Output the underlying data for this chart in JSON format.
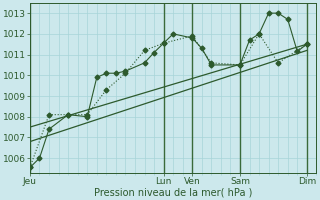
{
  "bg_color": "#cce8ec",
  "grid_color": "#a8d4d8",
  "line_color": "#2d5a2d",
  "text_color": "#2d5a2d",
  "xlabel": "Pression niveau de la mer( hPa )",
  "ylim": [
    1005.3,
    1013.5
  ],
  "yticks": [
    1006,
    1007,
    1008,
    1009,
    1010,
    1011,
    1012,
    1013
  ],
  "day_labels": [
    "Jeu",
    "Lun",
    "Ven",
    "Sam",
    "Dim"
  ],
  "day_positions": [
    0,
    14,
    17,
    22,
    29
  ],
  "xlim": [
    0,
    30
  ],
  "num_x_minor": 30,
  "series1_x": [
    0,
    1,
    2,
    4,
    6,
    7,
    8,
    9,
    10,
    12,
    13,
    14,
    15,
    17,
    18,
    19,
    22,
    23,
    24,
    25,
    26,
    27,
    28,
    29
  ],
  "series1_y": [
    1005.55,
    1006.0,
    1007.4,
    1008.1,
    1008.0,
    1009.9,
    1010.1,
    1010.1,
    1010.2,
    1010.6,
    1011.1,
    1011.55,
    1012.0,
    1011.8,
    1011.3,
    1010.5,
    1010.5,
    1011.7,
    1012.0,
    1013.0,
    1013.0,
    1012.7,
    1011.15,
    1011.5
  ],
  "series2_x": [
    0,
    2,
    4,
    6,
    8,
    10,
    12,
    14,
    17,
    19,
    22,
    24,
    26,
    29
  ],
  "series2_y": [
    1005.55,
    1008.1,
    1008.1,
    1008.1,
    1009.3,
    1010.1,
    1011.2,
    1011.55,
    1011.9,
    1010.6,
    1010.5,
    1012.0,
    1010.6,
    1011.5
  ],
  "trend1_x": [
    0,
    29
  ],
  "trend1_y": [
    1006.8,
    1011.2
  ],
  "trend2_x": [
    0,
    29
  ],
  "trend2_y": [
    1007.5,
    1011.5
  ],
  "vline_positions": [
    0,
    14,
    17,
    22,
    29
  ],
  "marker_size": 2.5
}
